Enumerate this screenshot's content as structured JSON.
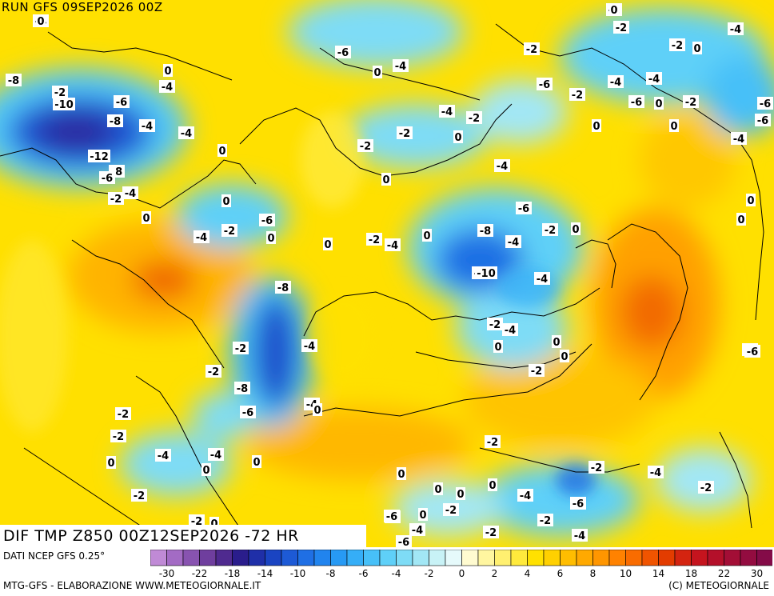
{
  "header": {
    "run_title": "RUN GFS 09SEP2026 00Z",
    "forecast_title": "DIF TMP Z850 00Z12SEP2026 -72 HR"
  },
  "footer": {
    "source": "DATI NCEP GFS 0.25°",
    "credit_left": "MTG-GFS - ELABORAZIONE WWW.METEOGIORNALE.IT",
    "credit_right": "(C) METEOGIORNALE"
  },
  "legend": {
    "boundaries": [
      -32,
      -30,
      -26,
      -22,
      -20,
      -18,
      -16,
      -14,
      -12,
      -10,
      -9,
      -8,
      -7,
      -6,
      -5,
      -4,
      -3,
      -2,
      -1,
      0,
      1,
      2,
      3,
      4,
      5,
      6,
      7,
      8,
      9,
      10,
      12,
      14,
      16,
      18,
      20,
      22,
      26,
      30,
      32
    ],
    "colors": [
      "#c08ad6",
      "#a36bc4",
      "#8853b0",
      "#6f3e9e",
      "#4f2a8f",
      "#2a1d8c",
      "#1f2fa8",
      "#1a44c2",
      "#1d5ad6",
      "#1f6fe4",
      "#2184ee",
      "#279af4",
      "#35aef7",
      "#47c0f8",
      "#5fd0f8",
      "#7edcf6",
      "#a2e7f5",
      "#c8f2f6",
      "#e6fafb",
      "#fffbd0",
      "#fff6a0",
      "#fff070",
      "#ffea3c",
      "#ffe100",
      "#ffd000",
      "#ffbd00",
      "#ffa900",
      "#ff9600",
      "#ff8200",
      "#f96c00",
      "#f05400",
      "#e33c00",
      "#d42410",
      "#c5141e",
      "#b4102a",
      "#a30e36",
      "#930c40",
      "#840b48"
    ],
    "tick_labels": [
      {
        "label": "-30",
        "value": -30
      },
      {
        "label": "-22",
        "value": -22
      },
      {
        "label": "-18",
        "value": -18
      },
      {
        "label": "-14",
        "value": -14
      },
      {
        "label": "-10",
        "value": -10
      },
      {
        "label": "-8",
        "value": -8
      },
      {
        "label": "-6",
        "value": -6
      },
      {
        "label": "-4",
        "value": -4
      },
      {
        "label": "-2",
        "value": -2
      },
      {
        "label": "0",
        "value": 0
      },
      {
        "label": "2",
        "value": 2
      },
      {
        "label": "4",
        "value": 4
      },
      {
        "label": "6",
        "value": 6
      },
      {
        "label": "8",
        "value": 8
      },
      {
        "label": "10",
        "value": 10
      },
      {
        "label": "14",
        "value": 14
      },
      {
        "label": "18",
        "value": 18
      },
      {
        "label": "22",
        "value": 22
      },
      {
        "label": "30",
        "value": 30
      }
    ]
  },
  "contour_labels": [
    "-2",
    "-4",
    "-2",
    "-4",
    "-2",
    "-6",
    "0",
    "-4",
    "-8",
    "-2",
    "0",
    "-6",
    "-2",
    "-8",
    "-6",
    "-4",
    "-4",
    "-6",
    "-6",
    "-12",
    "-2",
    "0",
    "-10",
    "-2",
    "-4",
    "-4",
    "-6",
    "-4",
    "0",
    "-2",
    "-4",
    "-4",
    "-8",
    "-2",
    "-6",
    "-2",
    "-6",
    "-4",
    "-4",
    "0",
    "0",
    "-4",
    "-2",
    "-6",
    "0",
    "-8",
    "0",
    "-2",
    "0",
    "-6",
    "-8",
    "-6",
    "-2",
    "-4",
    "-4",
    "-10",
    "-4",
    "0",
    "0",
    "-4",
    "-2",
    "-4",
    "0",
    "-4",
    "0",
    "-2",
    "-8",
    "0",
    "-2",
    "-2",
    "0",
    "0",
    "-6",
    "-4",
    "0",
    "-4",
    "-2",
    "0",
    "-2",
    "0",
    "0",
    "-2",
    "0",
    "-2",
    "0",
    "0",
    "0",
    "-4",
    "0",
    "-2",
    "-2",
    "-4",
    "-2",
    "-4",
    "-6",
    "0",
    "-2",
    "-4",
    "-2",
    "-2",
    "0",
    "-4",
    "-6",
    "-2",
    "-2",
    "0",
    "0",
    "-6",
    "0",
    "0",
    "0",
    "0"
  ]
}
